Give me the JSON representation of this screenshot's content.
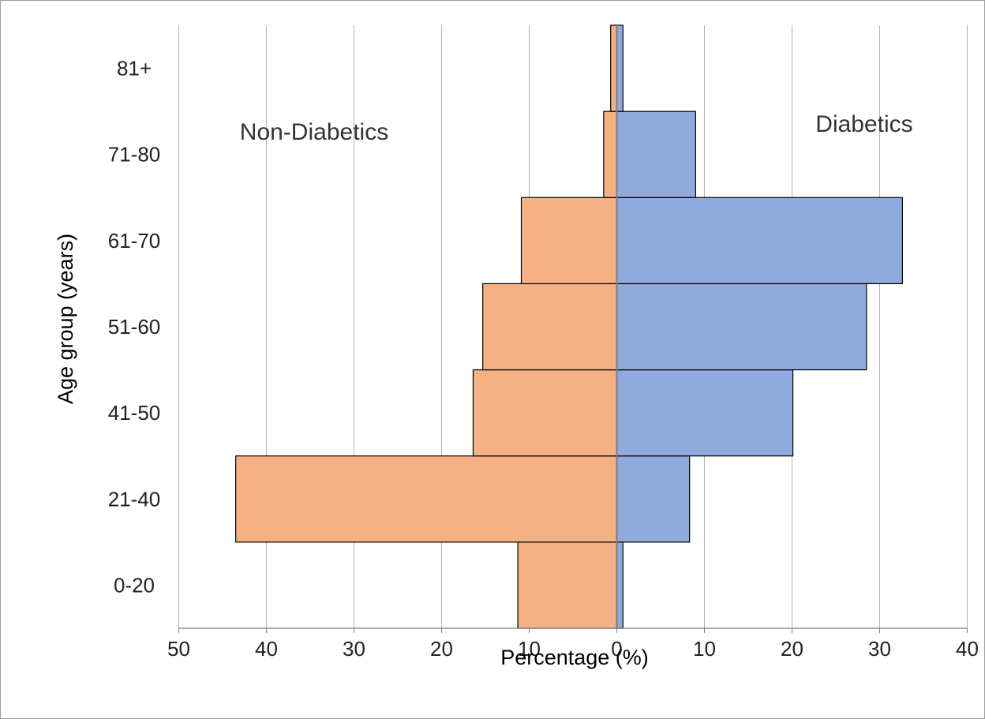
{
  "chart_data": {
    "type": "bar",
    "orientation": "horizontal",
    "layout": "population-pyramid",
    "categories": [
      "0-20",
      "21-40",
      "41-50",
      "51-60",
      "61-70",
      "71-80",
      "81+"
    ],
    "series": [
      {
        "name": "Non-Diabetics",
        "side": "left",
        "values": [
          11.3,
          43.5,
          16.4,
          15.3,
          10.9,
          1.5,
          0.7
        ]
      },
      {
        "name": "Diabetics",
        "side": "right",
        "values": [
          0.7,
          8.3,
          20.1,
          28.5,
          32.6,
          9.0,
          0.7
        ]
      }
    ],
    "left_axis": {
      "range": [
        50,
        0
      ],
      "ticks": [
        50,
        40,
        30,
        20,
        10,
        0
      ]
    },
    "right_axis": {
      "range": [
        0,
        40
      ],
      "ticks": [
        10,
        20,
        30,
        40
      ]
    },
    "xlabel": "Percentage (%)",
    "ylabel": "Age group (years)",
    "grid": "vertical",
    "colors": {
      "left": "#f4b183",
      "right": "#8faadc",
      "bar_border": "#000000",
      "grid": "#b3b3b3",
      "axis": "#7f7f7f"
    }
  }
}
